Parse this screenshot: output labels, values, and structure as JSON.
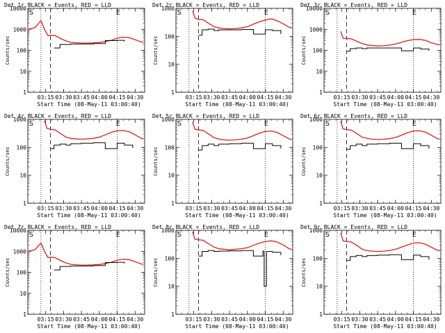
{
  "figure": {
    "background": "#ffffff",
    "events_color": "#000000",
    "lld_color": "#e41a1a",
    "marker_s": "S",
    "marker_e": "E"
  },
  "chart_data": [
    {
      "type": "line",
      "title": "Det 1r BLACK = Events, RED = LLD",
      "ylabel": "Counts/sec",
      "xlabel": "Start Time (08-May-11 03:00:40)",
      "x_ticks": [
        "03:15",
        "03:30",
        "03:45",
        "04:00",
        "04:15",
        "04:30"
      ],
      "y_ticks": [
        "1",
        "10",
        "100",
        "1000",
        "10000"
      ],
      "xlim": [
        "03:00",
        "04:38"
      ],
      "ylim": [
        1,
        10000
      ],
      "y_scale": "log",
      "markers": {
        "dotted": [
          "03:11",
          "04:15"
        ],
        "dashed": "03:19",
        "S": "03:00",
        "E": "04:14"
      },
      "series": [
        {
          "role": "LLD",
          "x": [
            "03:00",
            "03:06",
            "03:11",
            "03:14",
            "03:17",
            "03:19",
            "03:23",
            "03:28",
            "03:32",
            "03:36",
            "03:40",
            "03:45",
            "03:50",
            "03:55",
            "04:00",
            "04:05",
            "04:10",
            "04:15",
            "04:20",
            "04:25",
            "04:30",
            "04:35",
            "04:37"
          ],
          "values": [
            1000,
            1200,
            2600,
            1000,
            500,
            520,
            500,
            350,
            280,
            240,
            230,
            220,
            220,
            225,
            235,
            260,
            300,
            380,
            420,
            400,
            320,
            250,
            240
          ]
        },
        {
          "role": "Events",
          "x": [
            "03:19",
            "03:22",
            "03:27",
            "03:27",
            "03:32",
            "03:36",
            "03:36",
            "03:45",
            "03:55",
            "04:05",
            "04:05",
            "04:15",
            "04:21",
            "04:28"
          ],
          "values": [
            null,
            130,
            140,
            190,
            190,
            190,
            200,
            200,
            210,
            200,
            290,
            300,
            260,
            null
          ]
        }
      ]
    },
    {
      "type": "line",
      "title": "Det 2r BLACK = Events, RED = LLD",
      "ylabel": "Counts/sec",
      "xlabel": "Start Time (08-May-11 03:00:40)",
      "x_ticks": [
        "03:15",
        "03:30",
        "03:45",
        "04:00",
        "04:15",
        "04:30"
      ],
      "y_ticks": [
        "1",
        "10",
        "100",
        "1000"
      ],
      "xlim": [
        "03:00",
        "04:38"
      ],
      "ylim": [
        1,
        1000
      ],
      "y_scale": "log",
      "markers": {
        "dotted": [
          "03:11",
          "04:15"
        ],
        "dashed": "03:19",
        "S": "03:00",
        "E": "04:14"
      },
      "series": [
        {
          "role": "LLD",
          "x": [
            "03:14",
            "03:16",
            "03:19",
            "03:23",
            "03:28",
            "03:32",
            "03:36",
            "03:40",
            "03:45",
            "03:50",
            "03:55",
            "04:00",
            "04:05",
            "04:10",
            "04:15",
            "04:20",
            "04:25",
            "04:30",
            "04:35",
            "04:37"
          ],
          "values": [
            800,
            450,
            400,
            390,
            280,
            220,
            200,
            190,
            185,
            190,
            200,
            220,
            270,
            330,
            380,
            420,
            360,
            280,
            210,
            200
          ]
        },
        {
          "role": "Events",
          "x": [
            "03:19",
            "03:22",
            "03:27",
            "03:32",
            "03:36",
            "03:45",
            "03:55",
            "04:05",
            "04:15",
            "04:21",
            "04:28"
          ],
          "values": [
            110,
            170,
            180,
            160,
            170,
            170,
            175,
            120,
            170,
            160,
            120
          ]
        }
      ]
    },
    {
      "type": "line",
      "title": "Det 3r BLACK = Events, RED = LLD",
      "ylabel": "Counts/sec",
      "xlabel": "Start Time (08-May-11 03:00:40)",
      "x_ticks": [
        "03:15",
        "03:30",
        "03:45",
        "04:00",
        "04:15",
        "04:30"
      ],
      "y_ticks": [
        "1",
        "10",
        "100",
        "1000",
        "10000"
      ],
      "xlim": [
        "03:00",
        "04:38"
      ],
      "ylim": [
        1,
        10000
      ],
      "y_scale": "log",
      "markers": {
        "dotted": [
          "03:11",
          "04:15"
        ],
        "dashed": "03:19",
        "S": "03:00",
        "E": "04:14"
      },
      "series": [
        {
          "role": "LLD",
          "x": [
            "03:14",
            "03:16",
            "03:19",
            "03:23",
            "03:28",
            "03:32",
            "03:36",
            "03:40",
            "03:45",
            "03:50",
            "03:55",
            "04:00",
            "04:05",
            "04:10",
            "04:15",
            "04:20",
            "04:25",
            "04:30",
            "04:35",
            "04:37"
          ],
          "values": [
            800,
            380,
            370,
            350,
            260,
            210,
            180,
            170,
            160,
            165,
            175,
            200,
            240,
            290,
            320,
            330,
            300,
            230,
            190,
            180
          ]
        },
        {
          "role": "Events",
          "x": [
            "03:19",
            "03:22",
            "03:27",
            "03:32",
            "03:36",
            "03:45",
            "03:55",
            "04:05",
            "04:15",
            "04:21",
            "04:28"
          ],
          "values": [
            90,
            120,
            130,
            120,
            130,
            130,
            130,
            95,
            130,
            115,
            95
          ]
        }
      ]
    },
    {
      "type": "line",
      "title": "Det 4r BLACK = Events, RED = LLD",
      "ylabel": "Counts/sec",
      "xlabel": "Start Time (08-May-11 03:00:40)",
      "x_ticks": [
        "03:15",
        "03:30",
        "03:45",
        "04:00",
        "04:15",
        "04:30"
      ],
      "y_ticks": [
        "1",
        "10",
        "100",
        "1000"
      ],
      "xlim": [
        "03:00",
        "04:38"
      ],
      "ylim": [
        1,
        1000
      ],
      "y_scale": "log",
      "markers": {
        "dotted": [
          "03:11",
          "04:15"
        ],
        "dashed": "03:19",
        "S": "03:00",
        "E": "04:14"
      },
      "series": [
        {
          "role": "LLD",
          "x": [
            "03:14",
            "03:16",
            "03:19",
            "03:23",
            "03:28",
            "03:32",
            "03:36",
            "03:40",
            "03:45",
            "03:50",
            "03:55",
            "04:00",
            "04:05",
            "04:10",
            "04:15",
            "04:20",
            "04:25",
            "04:30",
            "04:35",
            "04:37"
          ],
          "values": [
            900,
            480,
            440,
            420,
            300,
            230,
            210,
            200,
            195,
            200,
            210,
            230,
            280,
            340,
            390,
            400,
            360,
            280,
            210,
            200
          ]
        },
        {
          "role": "Events",
          "x": [
            "03:19",
            "03:22",
            "03:27",
            "03:32",
            "03:36",
            "03:45",
            "03:55",
            "04:05",
            "04:15",
            "04:21",
            "04:28"
          ],
          "values": [
            90,
            120,
            130,
            120,
            135,
            140,
            145,
            90,
            140,
            120,
            95
          ]
        }
      ]
    },
    {
      "type": "line",
      "title": "Det 5r BLACK = Events, RED = LLD",
      "ylabel": "Counts/sec",
      "xlabel": "Start Time (08-May-11 03:00:40)",
      "x_ticks": [
        "03:15",
        "03:30",
        "03:45",
        "04:00",
        "04:15",
        "04:30"
      ],
      "y_ticks": [
        "1",
        "10",
        "100",
        "1000"
      ],
      "xlim": [
        "03:00",
        "04:38"
      ],
      "ylim": [
        1,
        1000
      ],
      "y_scale": "log",
      "markers": {
        "dotted": [
          "03:11",
          "04:15"
        ],
        "dashed": "03:19",
        "S": "03:00",
        "E": "04:14"
      },
      "series": [
        {
          "role": "LLD",
          "x": [
            "03:14",
            "03:16",
            "03:19",
            "03:23",
            "03:28",
            "03:32",
            "03:36",
            "03:40",
            "03:45",
            "03:50",
            "03:55",
            "04:00",
            "04:05",
            "04:10",
            "04:15",
            "04:20",
            "04:25",
            "04:30",
            "04:35",
            "04:37"
          ],
          "values": [
            800,
            440,
            420,
            400,
            290,
            220,
            200,
            185,
            180,
            185,
            195,
            215,
            260,
            320,
            370,
            380,
            340,
            260,
            200,
            190
          ]
        },
        {
          "role": "Events",
          "x": [
            "03:19",
            "03:22",
            "03:27",
            "03:32",
            "03:36",
            "03:45",
            "03:55",
            "04:05",
            "04:15",
            "04:21",
            "04:28"
          ],
          "values": [
            80,
            115,
            130,
            115,
            130,
            135,
            140,
            90,
            135,
            115,
            90
          ]
        }
      ]
    },
    {
      "type": "line",
      "title": "Det 6r BLACK = Events, RED = LLD",
      "ylabel": "Counts/sec",
      "xlabel": "Start Time (08-May-11 03:00:40)",
      "x_ticks": [
        "03:15",
        "03:30",
        "03:45",
        "04:00",
        "04:15",
        "04:30"
      ],
      "y_ticks": [
        "1",
        "10",
        "100",
        "1000"
      ],
      "xlim": [
        "03:00",
        "04:38"
      ],
      "ylim": [
        1,
        1000
      ],
      "y_scale": "log",
      "markers": {
        "dotted": [
          "03:11",
          "04:15"
        ],
        "dashed": "03:19",
        "S": "03:00",
        "E": "04:14"
      },
      "series": [
        {
          "role": "LLD",
          "x": [
            "03:14",
            "03:16",
            "03:19",
            "03:23",
            "03:28",
            "03:32",
            "03:36",
            "03:40",
            "03:45",
            "03:50",
            "03:55",
            "04:00",
            "04:05",
            "04:10",
            "04:15",
            "04:20",
            "04:25",
            "04:30",
            "04:35",
            "04:37"
          ],
          "values": [
            850,
            460,
            430,
            410,
            300,
            230,
            210,
            195,
            190,
            195,
            205,
            225,
            270,
            330,
            380,
            390,
            350,
            270,
            205,
            195
          ]
        },
        {
          "role": "Events",
          "x": [
            "03:19",
            "03:22",
            "03:27",
            "03:32",
            "03:36",
            "03:45",
            "03:55",
            "04:05",
            "04:15",
            "04:21",
            "04:28"
          ],
          "values": [
            85,
            115,
            130,
            115,
            130,
            135,
            140,
            90,
            135,
            115,
            90
          ]
        }
      ]
    },
    {
      "type": "line",
      "title": "Det 7r BLACK = Events, RED = LLD",
      "ylabel": "Counts/sec",
      "xlabel": "Start Time (08-May-11 03:00:40)",
      "x_ticks": [
        "03:15",
        "03:30",
        "03:45",
        "04:00",
        "04:15",
        "04:30"
      ],
      "y_ticks": [
        "1",
        "10",
        "100",
        "1000",
        "10000"
      ],
      "xlim": [
        "03:00",
        "04:38"
      ],
      "ylim": [
        1,
        10000
      ],
      "y_scale": "log",
      "markers": {
        "dotted": [
          "03:11",
          "04:15"
        ],
        "dashed": "03:19",
        "S": "03:00",
        "E": "04:14"
      },
      "series": [
        {
          "role": "LLD",
          "x": [
            "03:00",
            "03:06",
            "03:11",
            "03:14",
            "03:17",
            "03:19",
            "03:23",
            "03:28",
            "03:32",
            "03:36",
            "03:40",
            "03:45",
            "03:50",
            "03:55",
            "04:00",
            "04:05",
            "04:10",
            "04:15",
            "04:20",
            "04:25",
            "04:30",
            "04:35",
            "04:37"
          ],
          "values": [
            1000,
            1200,
            2500,
            1000,
            500,
            520,
            500,
            350,
            280,
            240,
            230,
            220,
            220,
            225,
            235,
            260,
            300,
            380,
            420,
            400,
            320,
            250,
            240
          ]
        },
        {
          "role": "Events",
          "x": [
            "03:19",
            "03:22",
            "03:27",
            "03:27",
            "03:32",
            "03:36",
            "03:36",
            "03:45",
            "03:55",
            "04:05",
            "04:05",
            "04:15",
            "04:21",
            "04:28"
          ],
          "values": [
            null,
            130,
            140,
            190,
            190,
            190,
            200,
            200,
            210,
            200,
            290,
            300,
            260,
            null
          ]
        }
      ]
    },
    {
      "type": "line",
      "title": "Det 8r BLACK = Events, RED = LLD",
      "ylabel": "Counts/sec",
      "xlabel": "Start Time (08-May-11 03:00:40)",
      "x_ticks": [
        "03:15",
        "03:30",
        "03:45",
        "04:00",
        "04:15",
        "04:30"
      ],
      "y_ticks": [
        "1",
        "10",
        "100",
        "1000"
      ],
      "xlim": [
        "03:00",
        "04:38"
      ],
      "ylim": [
        1,
        1000
      ],
      "y_scale": "log",
      "markers": {
        "dotted": [
          "03:11",
          "04:15"
        ],
        "dashed": "03:19",
        "S": "03:00",
        "E": "04:14"
      },
      "series": [
        {
          "role": "LLD",
          "x": [
            "03:14",
            "03:16",
            "03:19",
            "03:23",
            "03:28",
            "03:32",
            "03:36",
            "03:40",
            "03:45",
            "03:50",
            "03:55",
            "04:00",
            "04:05",
            "04:10",
            "04:15",
            "04:20",
            "04:25",
            "04:30",
            "04:35",
            "04:37"
          ],
          "values": [
            900,
            480,
            460,
            440,
            320,
            250,
            220,
            210,
            200,
            210,
            220,
            240,
            290,
            350,
            400,
            420,
            380,
            300,
            220,
            210
          ]
        },
        {
          "role": "Events",
          "x": [
            "03:19",
            "03:22",
            "03:27",
            "03:32",
            "03:36",
            "03:45",
            "03:55",
            "04:05",
            "04:13",
            "04:14",
            "04:16",
            "04:21",
            "04:28"
          ],
          "values": [
            120,
            175,
            190,
            175,
            180,
            185,
            190,
            120,
            180,
            10,
            175,
            165,
            130
          ]
        }
      ]
    },
    {
      "type": "line",
      "title": "Det 9r BLACK = Events, RED = LLD",
      "ylabel": "Counts/sec",
      "xlabel": "Start Time (08-May-11 03:00:40)",
      "x_ticks": [
        "03:15",
        "03:30",
        "03:45",
        "04:00",
        "04:15",
        "04:30"
      ],
      "y_ticks": [
        "1",
        "10",
        "100",
        "1000"
      ],
      "xlim": [
        "03:00",
        "04:38"
      ],
      "ylim": [
        1,
        1000
      ],
      "y_scale": "log",
      "markers": {
        "dotted": [
          "03:11",
          "04:15"
        ],
        "dashed": "03:19",
        "S": "03:00",
        "E": "04:14"
      },
      "series": [
        {
          "role": "LLD",
          "x": [
            "03:14",
            "03:16",
            "03:19",
            "03:23",
            "03:28",
            "03:32",
            "03:36",
            "03:40",
            "03:45",
            "03:50",
            "03:55",
            "04:00",
            "04:05",
            "04:10",
            "04:15",
            "04:20",
            "04:25",
            "04:30",
            "04:35",
            "04:37"
          ],
          "values": [
            800,
            420,
            400,
            380,
            280,
            210,
            190,
            180,
            175,
            180,
            190,
            210,
            250,
            300,
            350,
            360,
            320,
            250,
            195,
            185
          ]
        },
        {
          "role": "Events",
          "x": [
            "03:19",
            "03:22",
            "03:27",
            "03:32",
            "03:36",
            "03:45",
            "03:55",
            "04:05",
            "04:15",
            "04:21",
            "04:28"
          ],
          "values": [
            85,
            115,
            125,
            115,
            125,
            130,
            135,
            90,
            130,
            115,
            90
          ]
        }
      ]
    }
  ]
}
